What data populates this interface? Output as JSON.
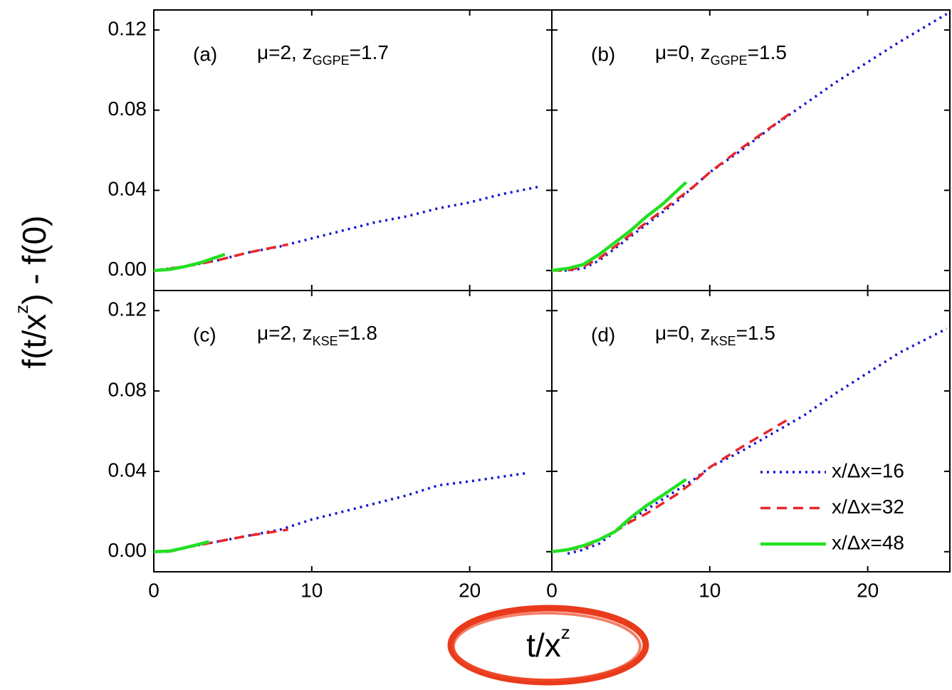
{
  "chart_data": [
    {
      "type": "line",
      "label": "(a)",
      "annotation": [
        "μ=2, z",
        "GGPE",
        "=1.7"
      ],
      "xlim": [
        0,
        25.2
      ],
      "ylim": [
        -0.01,
        0.13
      ],
      "xticks": [
        0,
        10,
        20
      ],
      "yticks": [
        {
          "value": 0,
          "label": "0.00"
        },
        {
          "value": 0.04,
          "label": "0.04"
        },
        {
          "value": 0.08,
          "label": "0.08"
        },
        {
          "value": 0.12,
          "label": "0.12"
        }
      ],
      "show_xtick_labels": false,
      "show_ytick_labels": true,
      "series": [
        {
          "name": "x/Δx=16",
          "color": "#1515d4",
          "style": "dotted",
          "x": [
            0,
            2,
            4,
            6,
            8,
            10,
            12,
            14,
            16,
            18,
            20,
            22,
            24.5
          ],
          "values": [
            0,
            0.002,
            0.005,
            0.009,
            0.012,
            0.016,
            0.02,
            0.024,
            0.027,
            0.031,
            0.034,
            0.038,
            0.042
          ]
        },
        {
          "name": "x/Δx=32",
          "color": "#e8262b",
          "style": "dashed",
          "x": [
            0,
            2,
            4,
            6,
            8.5
          ],
          "values": [
            0,
            0.002,
            0.005,
            0.009,
            0.013
          ]
        },
        {
          "name": "x/Δx=48",
          "color": "#22e022",
          "style": "solid",
          "x": [
            0,
            1,
            2,
            3,
            4.5
          ],
          "values": [
            0,
            0.0005,
            0.002,
            0.004,
            0.008
          ]
        }
      ]
    },
    {
      "type": "line",
      "label": "(b)",
      "annotation": [
        "μ=0, z",
        "GGPE",
        "=1.5"
      ],
      "xlim": [
        0,
        25.2
      ],
      "ylim": [
        -0.01,
        0.13
      ],
      "xticks": [
        0,
        10,
        20
      ],
      "yticks": [
        0,
        0.04,
        0.08,
        0.12
      ],
      "show_xtick_labels": false,
      "show_ytick_labels": false,
      "series": [
        {
          "name": "x/Δx=16",
          "color": "#1515d4",
          "style": "dotted",
          "x": [
            0,
            1,
            2,
            3,
            4,
            5,
            6,
            7,
            8,
            9,
            10,
            12,
            14,
            16,
            18,
            20,
            22,
            25
          ],
          "values": [
            0,
            0,
            0.001,
            0.005,
            0.011,
            0.017,
            0.023,
            0.029,
            0.035,
            0.042,
            0.049,
            0.06,
            0.072,
            0.083,
            0.094,
            0.104,
            0.114,
            0.128
          ]
        },
        {
          "name": "x/Δx=32",
          "color": "#e8262b",
          "style": "dashed",
          "x": [
            0,
            1,
            2,
            3,
            4,
            5,
            6,
            7,
            8,
            9,
            10,
            12,
            15.2
          ],
          "values": [
            0,
            0,
            0.002,
            0.006,
            0.012,
            0.018,
            0.024,
            0.03,
            0.036,
            0.042,
            0.049,
            0.061,
            0.079
          ]
        },
        {
          "name": "x/Δx=48",
          "color": "#22e022",
          "style": "solid",
          "x": [
            0,
            1,
            2,
            3,
            4,
            5,
            6,
            7,
            8.5
          ],
          "values": [
            0,
            0.001,
            0.003,
            0.008,
            0.014,
            0.02,
            0.027,
            0.033,
            0.044
          ]
        }
      ]
    },
    {
      "type": "line",
      "label": "(c)",
      "annotation": [
        "μ=2, z",
        "KSE",
        "=1.8"
      ],
      "xlim": [
        0,
        25.2
      ],
      "ylim": [
        -0.01,
        0.13
      ],
      "xticks": [
        0,
        10,
        20
      ],
      "yticks": [
        {
          "value": 0,
          "label": "0.00"
        },
        {
          "value": 0.04,
          "label": "0.04"
        },
        {
          "value": 0.08,
          "label": "0.08"
        },
        {
          "value": 0.12,
          "label": "0.12"
        }
      ],
      "show_xtick_labels": true,
      "show_ytick_labels": true,
      "series": [
        {
          "name": "x/Δx=16",
          "color": "#1515d4",
          "style": "dotted",
          "x": [
            0,
            1,
            2,
            4,
            6,
            8,
            10,
            12,
            14,
            16,
            18,
            20,
            23.5
          ],
          "values": [
            0,
            0,
            0.002,
            0.005,
            0.008,
            0.011,
            0.016,
            0.02,
            0.024,
            0.028,
            0.033,
            0.035,
            0.039
          ]
        },
        {
          "name": "x/Δx=32",
          "color": "#e8262b",
          "style": "dashed",
          "x": [
            0,
            1,
            2,
            4,
            6,
            8.5
          ],
          "values": [
            0,
            0,
            0.002,
            0.005,
            0.008,
            0.011
          ]
        },
        {
          "name": "x/Δx=48",
          "color": "#22e022",
          "style": "solid",
          "x": [
            0,
            1,
            2,
            3.5
          ],
          "values": [
            0,
            0.0003,
            0.002,
            0.005
          ]
        }
      ]
    },
    {
      "type": "line",
      "label": "(d)",
      "annotation": [
        "μ=0, z",
        "KSE",
        "=1.5"
      ],
      "xlim": [
        0,
        25.2
      ],
      "ylim": [
        -0.01,
        0.13
      ],
      "xticks": [
        0,
        10,
        20
      ],
      "yticks": [
        0,
        0.04,
        0.08,
        0.12
      ],
      "show_xtick_labels": true,
      "show_ytick_labels": false,
      "legend": "lower right",
      "series": [
        {
          "name": "x/Δx=16",
          "color": "#1515d4",
          "style": "dotted",
          "x": [
            1,
            2,
            3,
            4,
            5,
            6,
            7,
            8,
            9,
            10,
            12,
            14,
            16,
            18,
            20,
            22,
            25
          ],
          "values": [
            -0.001,
            0.001,
            0.004,
            0.01,
            0.016,
            0.021,
            0.026,
            0.031,
            0.036,
            0.042,
            0.05,
            0.059,
            0.068,
            0.079,
            0.089,
            0.099,
            0.111
          ]
        },
        {
          "name": "x/Δx=32",
          "color": "#e8262b",
          "style": "dashed",
          "x": [
            0,
            1,
            2,
            3,
            4,
            5,
            6,
            7,
            8,
            9,
            10,
            12,
            15.2
          ],
          "values": [
            0,
            0.001,
            0.002,
            0.006,
            0.01,
            0.015,
            0.019,
            0.024,
            0.029,
            0.035,
            0.042,
            0.052,
            0.067
          ]
        },
        {
          "name": "x/Δx=48",
          "color": "#22e022",
          "style": "solid",
          "x": [
            0,
            1,
            2,
            3,
            4,
            5,
            6,
            7,
            8.5
          ],
          "values": [
            0,
            0.001,
            0.003,
            0.006,
            0.01,
            0.017,
            0.023,
            0.028,
            0.036
          ]
        }
      ]
    }
  ],
  "y_label": [
    "f(t/x",
    "z",
    ") - f(0)"
  ],
  "x_label": [
    "t/x",
    "z"
  ]
}
